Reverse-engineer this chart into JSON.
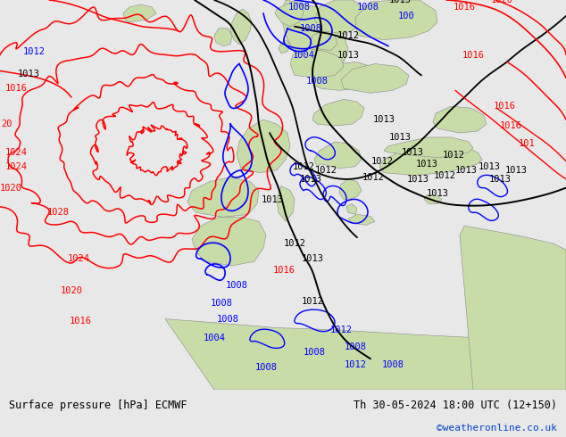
{
  "title_left": "Surface pressure [hPa] ECMWF",
  "title_right": "Th 30-05-2024 18:00 UTC (12+150)",
  "watermark": "©weatheronline.co.uk",
  "ocean_color": "#e8eef4",
  "land_color": "#c8dca8",
  "fig_bg": "#e8e8e8",
  "bottom_bar_color": "#e0e0e0",
  "text_color": "#000000",
  "watermark_color": "#0044cc",
  "map_bg": "#dde8f0"
}
